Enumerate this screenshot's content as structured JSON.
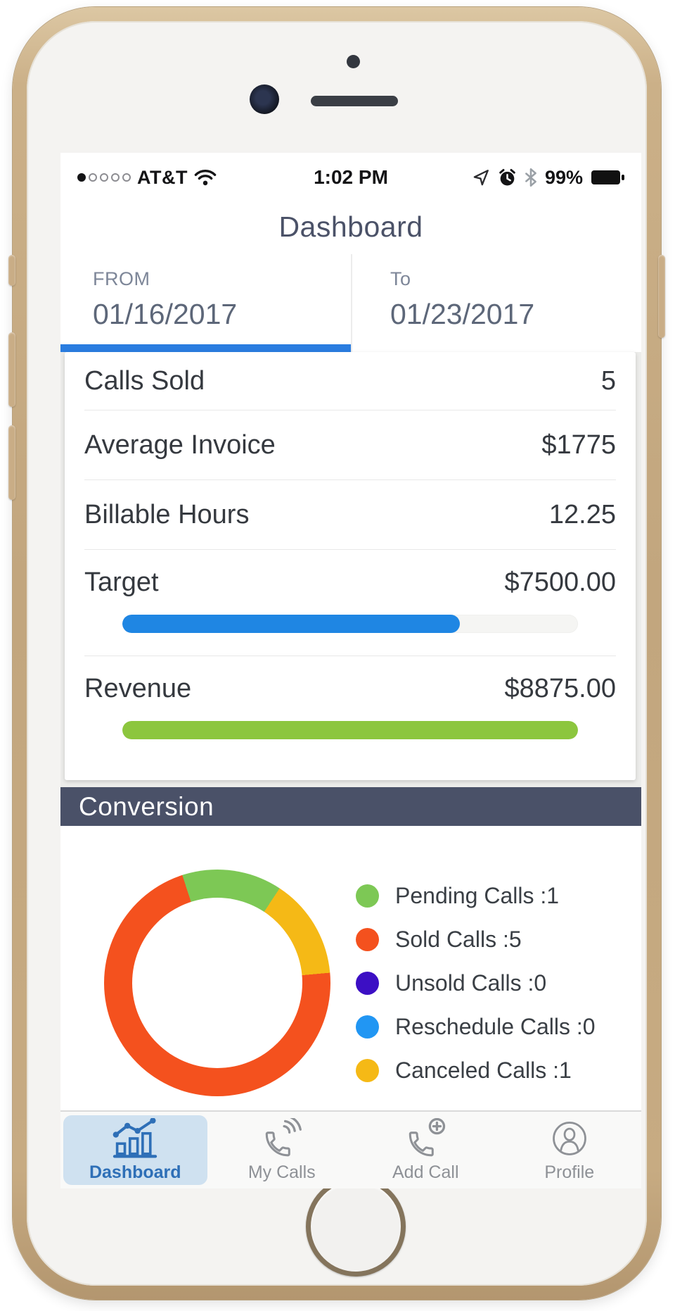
{
  "status_bar": {
    "carrier": "AT&T",
    "time": "1:02 PM",
    "battery": "99%"
  },
  "header": {
    "title": "Dashboard"
  },
  "date_range": {
    "from_label": "FROM",
    "from_value": "01/16/2017",
    "to_label": "To",
    "to_value": "01/23/2017"
  },
  "stats": {
    "rows": [
      {
        "label": "Calls Sold",
        "value": "5"
      },
      {
        "label": "Average Invoice",
        "value": "$1775"
      },
      {
        "label": "Billable Hours",
        "value": "12.25"
      }
    ],
    "progress_rows": [
      {
        "label": "Target",
        "value": "$7500.00",
        "fill_pct": 74,
        "color": "#1f86e3",
        "track_color": "#f5f5f3"
      },
      {
        "label": "Revenue",
        "value": "$8875.00",
        "fill_pct": 100,
        "color": "#8cc63e",
        "track_color": "#f5f5f3"
      }
    ]
  },
  "conversion": {
    "title": "Conversion"
  },
  "chart_data": {
    "type": "pie",
    "donut": true,
    "title": "Conversion",
    "start_angle_deg": -18,
    "segment_order": [
      0,
      4,
      3,
      2,
      1
    ],
    "categories": [
      "Pending Calls",
      "Sold Calls",
      "Unsold Calls",
      "Reschedule Calls",
      "Canceled Calls"
    ],
    "values": [
      1,
      5,
      0,
      0,
      1
    ],
    "colors": [
      "#7dc855",
      "#f4511e",
      "#3c0fc4",
      "#2196f3",
      "#f5b916"
    ],
    "legend_position": "right",
    "items": [
      {
        "label": "Pending Calls :1",
        "value": 1,
        "color": "#7dc855"
      },
      {
        "label": "Sold Calls :5",
        "value": 5,
        "color": "#f4511e"
      },
      {
        "label": "Unsold Calls :0",
        "value": 0,
        "color": "#3c0fc4"
      },
      {
        "label": "Reschedule Calls :0",
        "value": 0,
        "color": "#2196f3"
      },
      {
        "label": "Canceled Calls :1",
        "value": 1,
        "color": "#f5b916"
      }
    ]
  },
  "tab_bar": {
    "active_color": "#2e6fb7",
    "inactive_color": "#8e9196",
    "items": [
      {
        "label": "Dashboard",
        "active": true
      },
      {
        "label": "My Calls",
        "active": false
      },
      {
        "label": "Add Call",
        "active": false
      },
      {
        "label": "Profile",
        "active": false
      }
    ]
  }
}
